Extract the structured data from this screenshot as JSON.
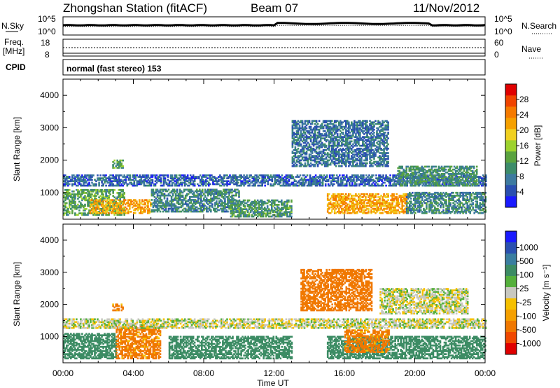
{
  "header": {
    "station": "Zhongshan Station (fitACF)",
    "beam": "Beam 07",
    "date": "11/Nov/2012"
  },
  "noise_panel": {
    "left_label": "N.Sky",
    "right_label": "N.Search",
    "ticks_left": [
      "10^5",
      "10^0"
    ],
    "ticks_right": [
      "10^5",
      "10^0"
    ]
  },
  "freq_panel": {
    "left_label_1": "Freq.",
    "left_label_2": "[MHz]",
    "right_label": "Nave",
    "ticks_left": [
      "18",
      "8"
    ],
    "ticks_right": [
      "60",
      "0"
    ]
  },
  "cpid": {
    "label": "CPID",
    "text": "normal (fast stereo) 153"
  },
  "time_axis": {
    "label": "Time UT",
    "ticks": [
      "00:00",
      "04:00",
      "08:00",
      "12:00",
      "16:00",
      "20:00",
      "00:00"
    ]
  },
  "colors": {
    "power": [
      "#1a1aff",
      "#2a4fb0",
      "#3d7aa0",
      "#3c8c6a",
      "#5aa33f",
      "#9dd22e",
      "#f0d020",
      "#f5a000",
      "#f57a00",
      "#f04400",
      "#e00000"
    ],
    "velocity": [
      "#1a1aff",
      "#2a50b0",
      "#3a7ea0",
      "#3c8c64",
      "#55b03c",
      "#c8c8c0",
      "#f5c000",
      "#f5a000",
      "#f07800",
      "#f04800",
      "#e00000"
    ]
  },
  "chart_data": [
    {
      "type": "heatmap",
      "name": "",
      "ylabel": "Slant Range [km]",
      "xlabel": "",
      "x_range_hours": [
        0,
        24
      ],
      "ylim": [
        180,
        4500
      ],
      "yticks": [
        "1000",
        "2000",
        "3000",
        "4000"
      ],
      "colorbar": {
        "label": "Power [dB]",
        "range": [
          0,
          32
        ],
        "ticks": [
          "4",
          "8",
          "12",
          "16",
          "20",
          "24",
          "28"
        ]
      },
      "echo_regions": [
        {
          "t0": 0.0,
          "t1": 3.5,
          "r0": 300,
          "r1": 1100,
          "value": 12
        },
        {
          "t0": 1.5,
          "t1": 5.0,
          "r0": 350,
          "r1": 800,
          "value": 22
        },
        {
          "t0": 2.8,
          "t1": 3.4,
          "r0": 1750,
          "r1": 2000,
          "value": 12
        },
        {
          "t0": 0.0,
          "t1": 24.0,
          "r0": 1200,
          "r1": 1550,
          "value": 6
        },
        {
          "t0": 5.0,
          "t1": 10.0,
          "r0": 400,
          "r1": 1100,
          "value": 9
        },
        {
          "t0": 9.5,
          "t1": 13.0,
          "r0": 250,
          "r1": 750,
          "value": 11
        },
        {
          "t0": 13.0,
          "t1": 18.5,
          "r0": 1800,
          "r1": 3200,
          "value": 7
        },
        {
          "t0": 15.0,
          "t1": 19.5,
          "r0": 350,
          "r1": 950,
          "value": 22
        },
        {
          "t0": 19.0,
          "t1": 23.5,
          "r0": 1200,
          "r1": 1800,
          "value": 10
        },
        {
          "t0": 19.5,
          "t1": 24.0,
          "r0": 350,
          "r1": 1000,
          "value": 9
        }
      ]
    },
    {
      "type": "heatmap",
      "name": "",
      "ylabel": "Slant Range [km]",
      "xlabel": "Time UT",
      "x_range_hours": [
        0,
        24
      ],
      "ylim": [
        180,
        4500
      ],
      "yticks": [
        "1000",
        "2000",
        "3000",
        "4000"
      ],
      "colorbar": {
        "label": "Velocity [m s⁻¹]",
        "ticks": [
          "1000",
          "500",
          "100",
          "25",
          "-25",
          "-100",
          "-500",
          "-1000"
        ]
      },
      "echo_regions": [
        {
          "t0": 0.0,
          "t1": 3.0,
          "r0": 300,
          "r1": 1100,
          "value": 200
        },
        {
          "t0": 3.0,
          "t1": 5.5,
          "r0": 300,
          "r1": 1300,
          "value": -150
        },
        {
          "t0": 2.8,
          "t1": 3.4,
          "r0": 1800,
          "r1": 2000,
          "value": -150
        },
        {
          "t0": 0.0,
          "t1": 24.0,
          "r0": 1250,
          "r1": 1550,
          "value": 0
        },
        {
          "t0": 6.0,
          "t1": 13.0,
          "r0": 300,
          "r1": 1000,
          "value": 200
        },
        {
          "t0": 13.5,
          "t1": 17.5,
          "r0": 1800,
          "r1": 3100,
          "value": -200
        },
        {
          "t0": 15.0,
          "t1": 24.0,
          "r0": 300,
          "r1": 1000,
          "value": 200
        },
        {
          "t0": 16.0,
          "t1": 18.5,
          "r0": 500,
          "r1": 1200,
          "value": -150
        },
        {
          "t0": 18.0,
          "t1": 23.0,
          "r0": 1700,
          "r1": 2500,
          "value": 0
        }
      ]
    }
  ]
}
